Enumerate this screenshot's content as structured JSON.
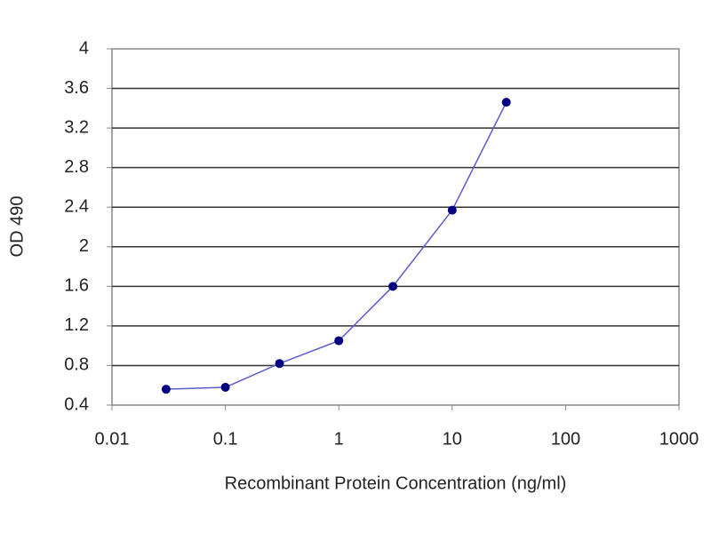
{
  "chart_data": {
    "type": "line",
    "x_label": "Recombinant Protein Concentration (ng/ml)",
    "y_label": "OD 490",
    "x": [
      0.03,
      0.1,
      0.3,
      1,
      3,
      10,
      30
    ],
    "series": [
      {
        "color": "#000080",
        "line_color": "#5c5ccc",
        "values": [
          0.56,
          0.58,
          0.82,
          1.05,
          1.6,
          2.37,
          3.46
        ]
      }
    ],
    "xscale": "log",
    "xlim": [
      0.01,
      1000
    ],
    "xticks": [
      0.01,
      0.1,
      1,
      10,
      100,
      1000
    ],
    "ylim": [
      0.4,
      4
    ],
    "yticks": [
      0.4,
      0.8,
      1.2,
      1.6,
      2,
      2.4,
      2.8,
      3.2,
      3.6,
      4
    ],
    "grid": true
  }
}
